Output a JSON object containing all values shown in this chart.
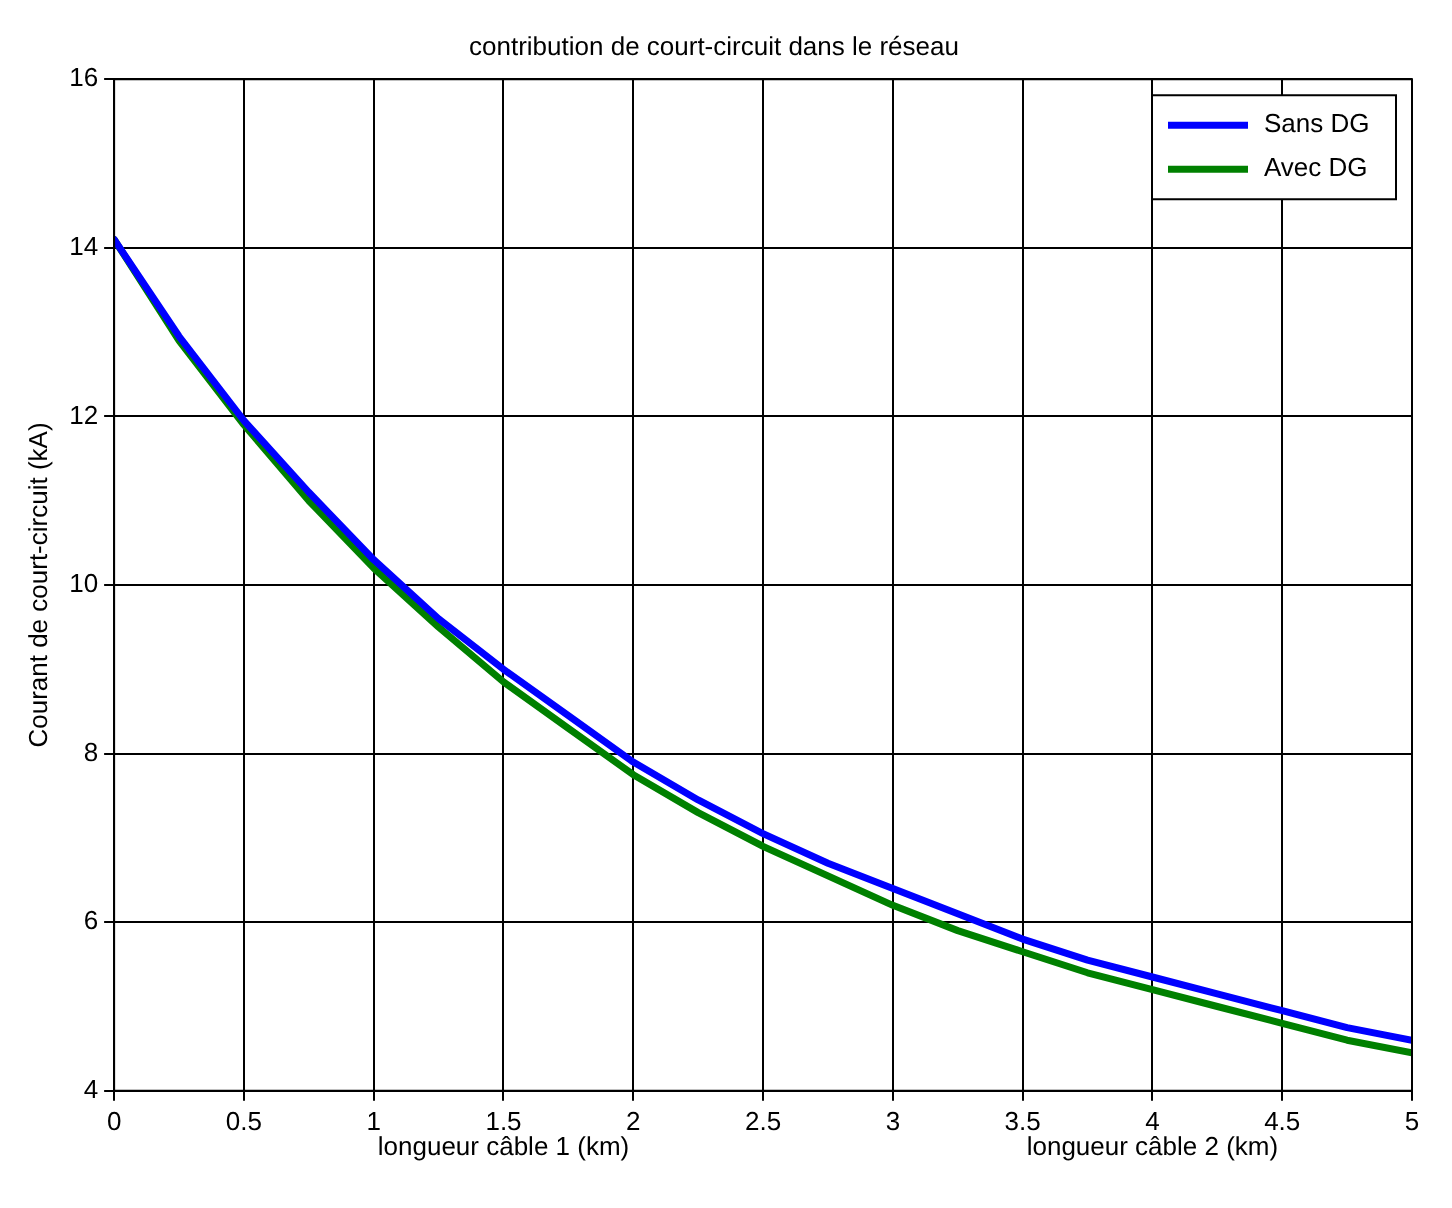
{
  "chart_data": {
    "type": "line",
    "title": "contribution de court-circuit dans le réseau",
    "xlabel": "longueur câble 1 (km)",
    "ylabel": "Courant de court-circuit (kA)",
    "annotations": [
      "longueur câble 2 (km)"
    ],
    "x": [
      0,
      0.25,
      0.5,
      0.75,
      1,
      1.25,
      1.5,
      1.75,
      2,
      2.25,
      2.5,
      2.75,
      3,
      3.25,
      3.5,
      3.75,
      4,
      4.25,
      4.5,
      4.75,
      5
    ],
    "series": [
      {
        "name": "Sans DG",
        "color": "#0000ff",
        "values": [
          14.1,
          12.95,
          11.95,
          11.1,
          10.3,
          9.6,
          9.0,
          8.45,
          7.9,
          7.45,
          7.05,
          6.7,
          6.4,
          6.1,
          5.8,
          5.55,
          5.35,
          5.15,
          4.95,
          4.75,
          4.6
        ]
      },
      {
        "name": "Avec DG",
        "color": "#008000",
        "values": [
          14.1,
          12.9,
          11.9,
          11.0,
          10.2,
          9.5,
          8.85,
          8.3,
          7.75,
          7.3,
          6.9,
          6.55,
          6.2,
          5.9,
          5.65,
          5.4,
          5.2,
          5.0,
          4.8,
          4.6,
          4.45
        ]
      }
    ],
    "xlim": [
      0,
      5
    ],
    "xticks": [
      0,
      0.5,
      1,
      1.5,
      2,
      2.5,
      3,
      3.5,
      4,
      4.5,
      5
    ],
    "ylim": [
      4,
      16
    ],
    "yticks": [
      4,
      6,
      8,
      10,
      12,
      14,
      16
    ],
    "grid": true,
    "legend": "top right",
    "line_style": "solid",
    "marker": "none"
  }
}
